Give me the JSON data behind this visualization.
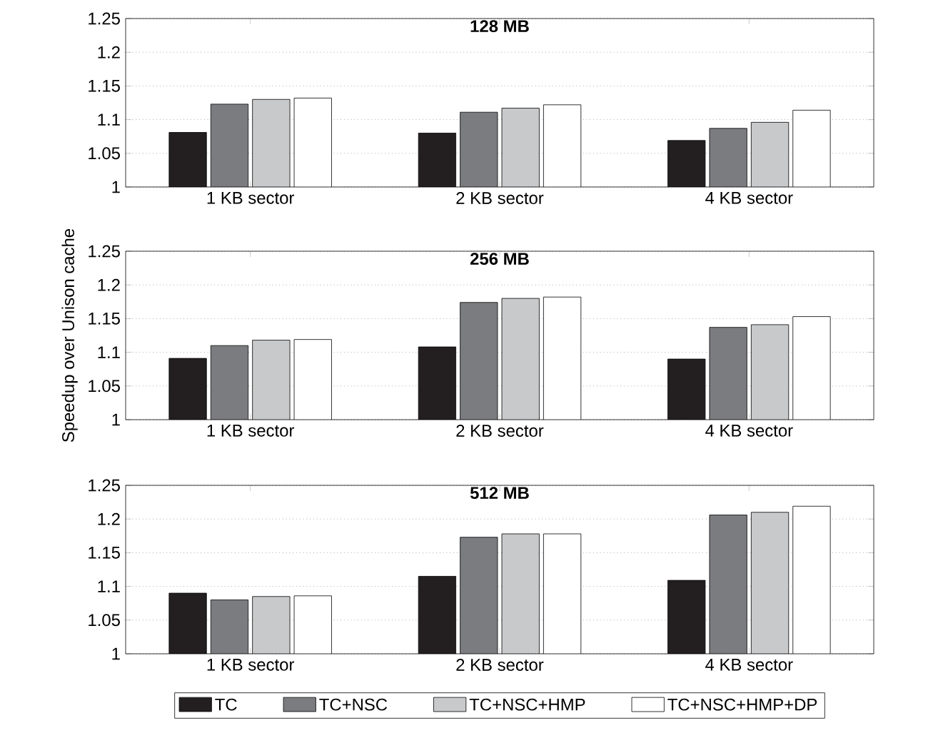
{
  "chart_data": [
    {
      "type": "bar",
      "title": "128 MB",
      "categories": [
        "1 KB sector",
        "2 KB sector",
        "4 KB sector"
      ],
      "ylim": [
        1,
        1.25
      ],
      "yticks": [
        1,
        1.05,
        1.1,
        1.15,
        1.2,
        1.25
      ],
      "grid": "y",
      "series": [
        {
          "color": "#231f20",
          "values": [
            1.081,
            1.08,
            1.069
          ]
        },
        {
          "color": "#7b7c80",
          "values": [
            1.123,
            1.111,
            1.087
          ]
        },
        {
          "color": "#c8c9cb",
          "values": [
            1.13,
            1.117,
            1.096
          ]
        },
        {
          "color": "#ffffff",
          "values": [
            1.132,
            1.122,
            1.114
          ]
        }
      ]
    },
    {
      "type": "bar",
      "title": "256 MB",
      "ylabel": "Speedup over Unison cache",
      "categories": [
        "1 KB sector",
        "2 KB sector",
        "4 KB sector"
      ],
      "ylim": [
        1,
        1.25
      ],
      "yticks": [
        1,
        1.05,
        1.1,
        1.15,
        1.2,
        1.25
      ],
      "grid": "y",
      "series": [
        {
          "color": "#231f20",
          "values": [
            1.091,
            1.108,
            1.09
          ]
        },
        {
          "color": "#7b7c80",
          "values": [
            1.11,
            1.174,
            1.137
          ]
        },
        {
          "color": "#c8c9cb",
          "values": [
            1.118,
            1.18,
            1.141
          ]
        },
        {
          "color": "#ffffff",
          "values": [
            1.119,
            1.182,
            1.153
          ]
        }
      ]
    },
    {
      "type": "bar",
      "title": "512 MB",
      "categories": [
        "1 KB sector",
        "2 KB sector",
        "4 KB sector"
      ],
      "ylim": [
        1,
        1.25
      ],
      "yticks": [
        1,
        1.05,
        1.1,
        1.15,
        1.2,
        1.25
      ],
      "grid": "y",
      "legend": "bottom",
      "series": [
        {
          "name": "TC",
          "color": "#231f20",
          "values": [
            1.09,
            1.115,
            1.109
          ]
        },
        {
          "name": "TC+NSC",
          "color": "#7b7c80",
          "values": [
            1.08,
            1.173,
            1.206
          ]
        },
        {
          "name": "TC+NSC+HMP",
          "color": "#c8c9cb",
          "values": [
            1.085,
            1.178,
            1.21
          ]
        },
        {
          "name": "TC+NSC+HMP+DP",
          "color": "#ffffff",
          "values": [
            1.086,
            1.178,
            1.219
          ]
        }
      ]
    }
  ]
}
